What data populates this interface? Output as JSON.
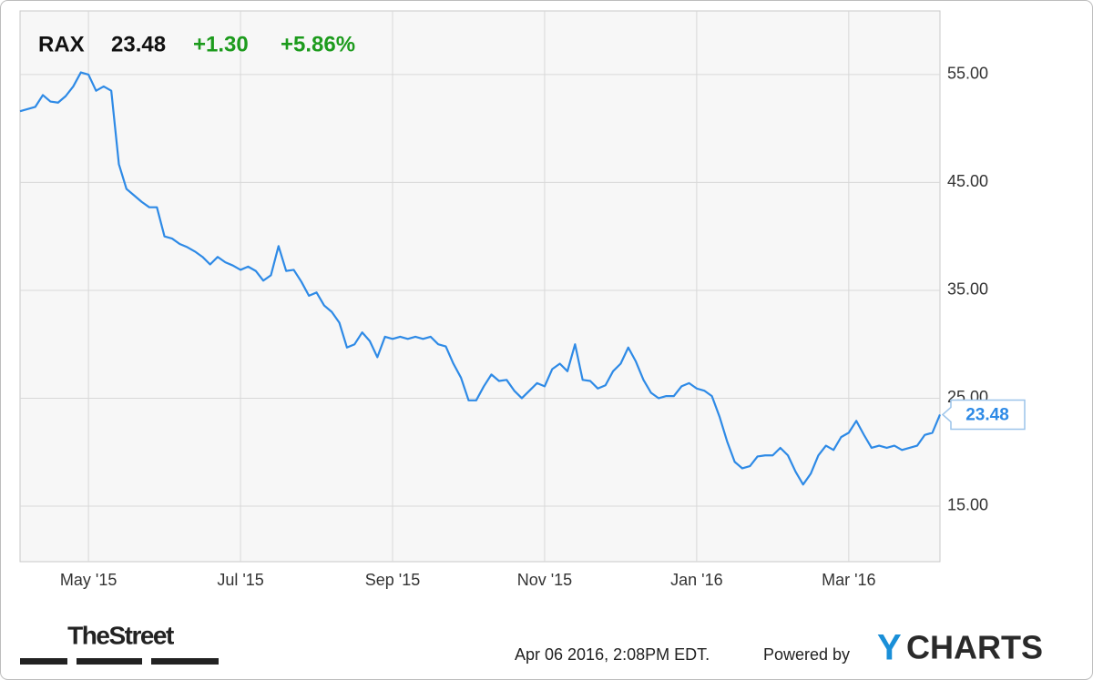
{
  "chart_data": {
    "type": "line",
    "ticker": "RAX",
    "change": "+1.30",
    "change_percent": "+5.86%",
    "categories": [
      null,
      null,
      null,
      null,
      null,
      null,
      null,
      null,
      null,
      "May '15",
      null,
      null,
      null,
      null,
      null,
      null,
      null,
      null,
      null,
      null,
      null,
      null,
      null,
      null,
      null,
      null,
      null,
      null,
      null,
      "Jul '15",
      null,
      null,
      null,
      null,
      null,
      null,
      null,
      null,
      null,
      null,
      null,
      null,
      null,
      null,
      null,
      null,
      null,
      null,
      null,
      "Sep '15",
      null,
      null,
      null,
      null,
      null,
      null,
      null,
      null,
      null,
      null,
      null,
      null,
      null,
      null,
      null,
      null,
      null,
      null,
      null,
      "Nov '15",
      null,
      null,
      null,
      null,
      null,
      null,
      null,
      null,
      null,
      null,
      null,
      null,
      null,
      null,
      null,
      null,
      null,
      null,
      null,
      "Jan '16",
      null,
      null,
      null,
      null,
      null,
      null,
      null,
      null,
      null,
      null,
      null,
      null,
      null,
      null,
      null,
      null,
      null,
      null,
      null,
      "Mar '16",
      null,
      null,
      null,
      null,
      null,
      null,
      null,
      null,
      null,
      null,
      null,
      null
    ],
    "values": [
      51.6,
      51.8,
      52.0,
      53.1,
      52.5,
      52.4,
      53.0,
      53.9,
      55.2,
      55.0,
      53.5,
      53.9,
      53.5,
      46.7,
      44.4,
      43.8,
      43.2,
      42.7,
      42.7,
      40.0,
      39.8,
      39.3,
      39.0,
      38.6,
      38.1,
      37.4,
      38.1,
      37.6,
      37.3,
      36.9,
      37.2,
      36.8,
      35.9,
      36.4,
      39.1,
      36.8,
      36.9,
      35.8,
      34.5,
      34.8,
      33.6,
      33.0,
      32.0,
      29.7,
      30.0,
      31.1,
      30.3,
      28.8,
      30.7,
      30.5,
      30.7,
      30.5,
      30.7,
      30.5,
      30.7,
      30.0,
      29.8,
      28.2,
      26.9,
      24.8,
      24.8,
      26.1,
      27.2,
      26.6,
      26.7,
      25.7,
      25.0,
      25.7,
      26.4,
      26.1,
      27.7,
      28.2,
      27.5,
      30.0,
      26.7,
      26.6,
      25.9,
      26.2,
      27.5,
      28.2,
      29.7,
      28.4,
      26.7,
      25.5,
      25.0,
      25.2,
      25.2,
      26.1,
      26.4,
      25.9,
      25.7,
      25.2,
      23.3,
      21.0,
      19.1,
      18.5,
      18.7,
      19.6,
      19.7,
      19.7,
      20.4,
      19.7,
      18.2,
      17.0,
      18.0,
      19.7,
      20.6,
      20.2,
      21.4,
      21.8,
      22.9,
      21.6,
      20.4,
      20.6,
      20.4,
      20.6,
      20.2,
      20.4,
      20.6,
      21.6,
      21.8,
      23.48
    ],
    "color": "#2e8ae6",
    "ylim": [
      9.85,
      60.9
    ],
    "yticks": [
      {
        "value": 15,
        "label": "15.00"
      },
      {
        "value": 25,
        "label": "25.00"
      },
      {
        "value": 35,
        "label": "35.00"
      },
      {
        "value": 45,
        "label": "45.00"
      },
      {
        "value": 55,
        "label": "55.00"
      }
    ],
    "grid": true
  },
  "footer": {
    "publisher": "TheStreet",
    "timestamp": "Apr 06 2016, 2:08PM EDT.",
    "powered_by": "Powered by",
    "brand_mark": "Y",
    "brand_name": "CHARTS"
  }
}
